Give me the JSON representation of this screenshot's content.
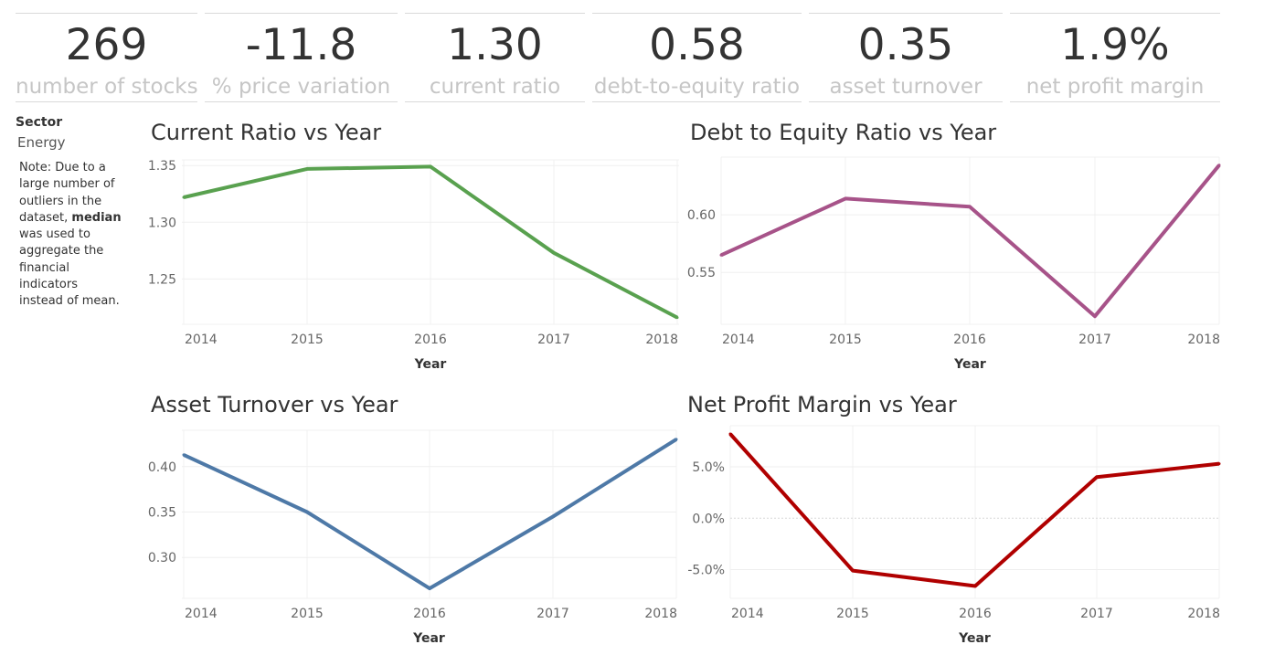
{
  "kpis": [
    {
      "value": "269",
      "label": "number of stocks"
    },
    {
      "value": "-11.8",
      "label": "% price variation"
    },
    {
      "value": "1.30",
      "label": "current ratio"
    },
    {
      "value": "0.58",
      "label": "debt-to-equity ratio"
    },
    {
      "value": "0.35",
      "label": "asset turnover"
    },
    {
      "value": "1.9%",
      "label": "net profit margin"
    }
  ],
  "filter": {
    "title": "Sector",
    "value": "Energy"
  },
  "note": {
    "before": "Note: Due to a large number of outliers in the dataset, ",
    "bold": "median",
    "after": " was used to aggregate the financial indicators instead of mean."
  },
  "chart_data": [
    {
      "type": "line",
      "title": "Current Ratio vs Year",
      "xlabel": "Year",
      "ylabel": "",
      "color": "#59a14f",
      "x": [
        "2014",
        "2015",
        "2016",
        "2017",
        "2018"
      ],
      "values": [
        1.322,
        1.347,
        1.349,
        1.273,
        1.216
      ],
      "yticks": [
        1.25,
        1.3,
        1.35
      ],
      "ytick_labels": [
        "1.25",
        "1.30",
        "1.35"
      ],
      "ylim": [
        1.21,
        1.355
      ],
      "grid": true
    },
    {
      "type": "line",
      "title": "Debt to Equity Ratio vs Year",
      "xlabel": "Year",
      "ylabel": "",
      "color": "#a75389",
      "x": [
        "2014",
        "2015",
        "2016",
        "2017",
        "2018"
      ],
      "values": [
        0.565,
        0.614,
        0.607,
        0.512,
        0.643
      ],
      "yticks": [
        0.55,
        0.6
      ],
      "ytick_labels": [
        "0.55",
        "0.60"
      ],
      "ylim": [
        0.505,
        0.65
      ],
      "grid": true
    },
    {
      "type": "line",
      "title": "Asset Turnover vs Year",
      "xlabel": "Year",
      "ylabel": "",
      "color": "#4e79a7",
      "x": [
        "2014",
        "2015",
        "2016",
        "2017",
        "2018"
      ],
      "values": [
        0.413,
        0.35,
        0.266,
        0.345,
        0.43
      ],
      "yticks": [
        0.3,
        0.35,
        0.4
      ],
      "ytick_labels": [
        "0.30",
        "0.35",
        "0.40"
      ],
      "ylim": [
        0.255,
        0.44
      ],
      "grid": true
    },
    {
      "type": "line",
      "title": "Net Profit Margin vs Year",
      "xlabel": "Year",
      "ylabel": "",
      "color": "#b00000",
      "x": [
        "2014",
        "2015",
        "2016",
        "2017",
        "2018"
      ],
      "values": [
        8.2,
        -5.1,
        -6.6,
        4.0,
        5.3
      ],
      "yticks": [
        -5.0,
        0.0,
        5.0
      ],
      "ytick_labels": [
        "-5.0%",
        "0.0%",
        "5.0%"
      ],
      "ylim": [
        -7.8,
        9.0
      ],
      "grid": true
    }
  ]
}
